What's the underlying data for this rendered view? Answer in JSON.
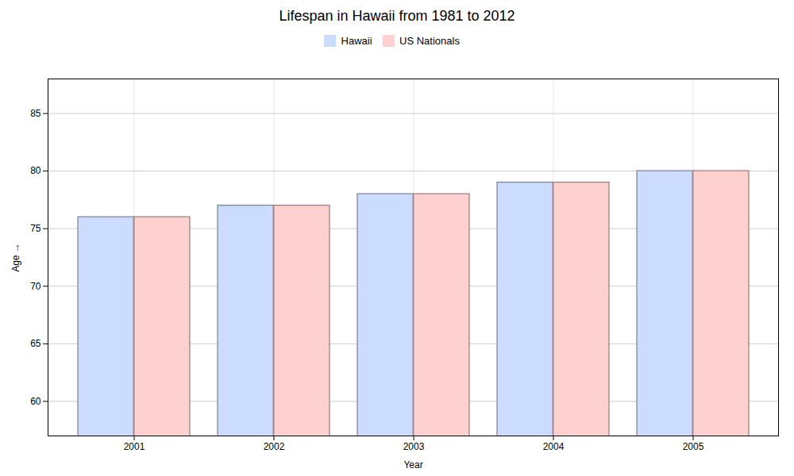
{
  "chart_data": {
    "type": "bar",
    "title": "Lifespan in Hawaii from 1981 to 2012",
    "x_label": "Year",
    "y_label": "Age",
    "categories": [
      "2001",
      "2002",
      "2003",
      "2004",
      "2005"
    ],
    "series": [
      {
        "name": "Hawaii",
        "color": "#ccdcff",
        "values": [
          76,
          77,
          78,
          79,
          80
        ]
      },
      {
        "name": "US Nationals",
        "color": "#ffd0d0",
        "values": [
          76,
          77,
          78,
          79,
          80
        ]
      }
    ],
    "ylim": [
      57,
      88
    ],
    "yticks": [
      60,
      65,
      70,
      75,
      80,
      85
    ],
    "grid": true,
    "legend": "top"
  }
}
